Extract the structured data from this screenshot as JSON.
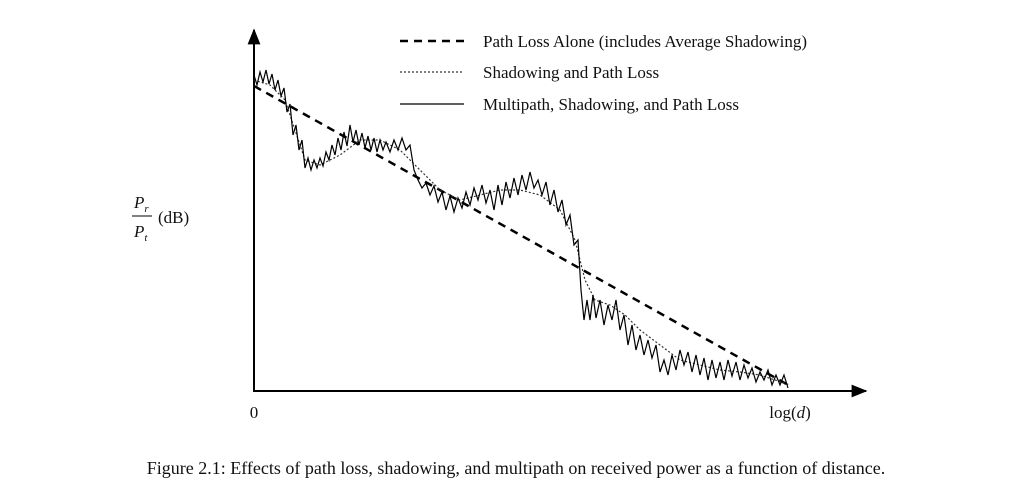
{
  "figure": {
    "legend": [
      "Path Loss Alone (includes Average Shadowing)",
      "Shadowing and Path Loss",
      "Multipath, Shadowing, and Path Loss"
    ],
    "y_label": {
      "numerator": "P",
      "numerator_sub": "r",
      "denominator": "P",
      "denominator_sub": "t",
      "unit": "(dB)"
    },
    "x_origin": "0",
    "x_label": {
      "prefix": "log(",
      "variable": "d",
      "suffix": ")"
    },
    "caption": "Figure 2.1: Effects of path loss, shadowing, and multipath on received power as a function of distance."
  }
}
